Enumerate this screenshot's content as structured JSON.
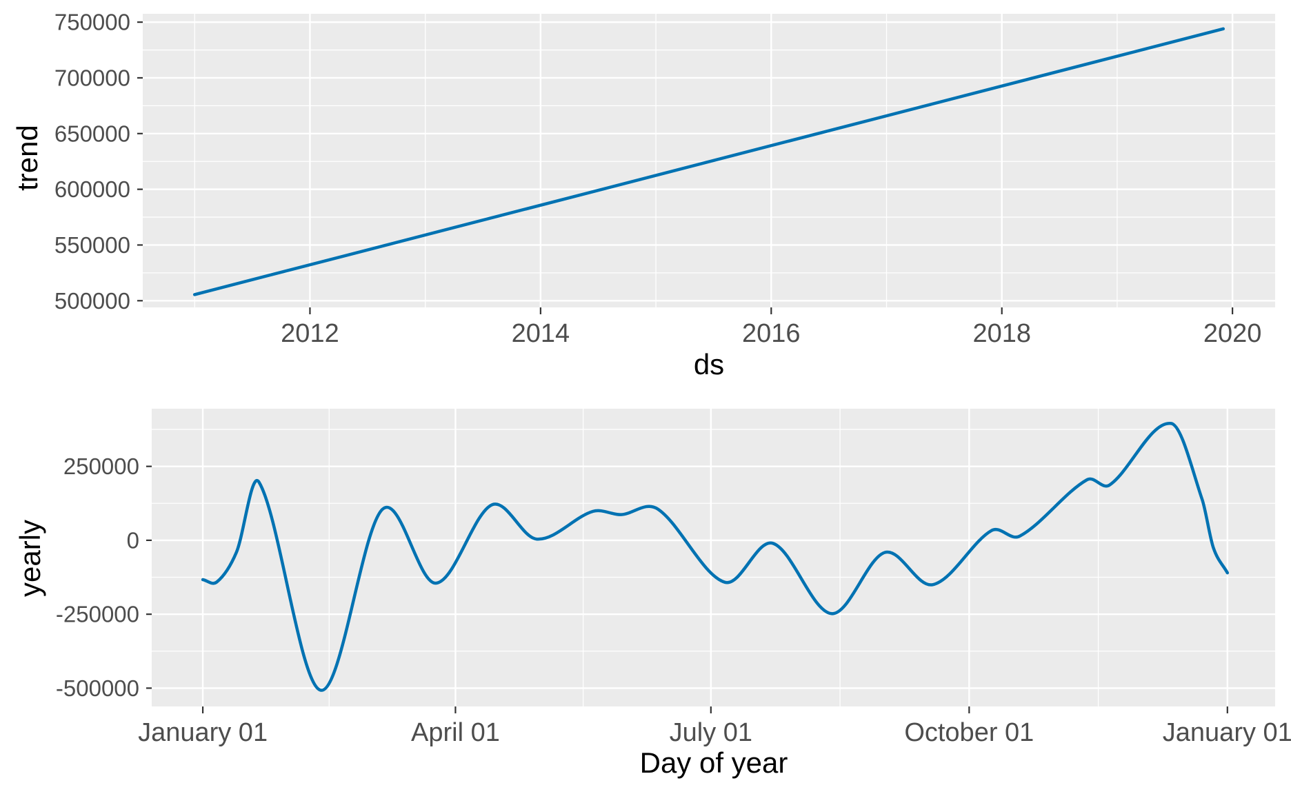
{
  "colors": {
    "line": "#0072B2",
    "panel_bg": "#EBEBEB",
    "grid": "#FFFFFF",
    "tick_text": "#4D4D4D",
    "tick_mark": "#333333",
    "axis_title": "#000000"
  },
  "chart_data": [
    {
      "type": "line",
      "title": "",
      "xlabel": "ds",
      "ylabel": "trend",
      "grid": true,
      "legend": "none",
      "xlim": [
        2010.55,
        2020.37
      ],
      "ylim": [
        494000,
        757500
      ],
      "x_ticks": {
        "major": [
          {
            "label": "2012",
            "value": 2012
          },
          {
            "label": "2014",
            "value": 2014
          },
          {
            "label": "2016",
            "value": 2016
          },
          {
            "label": "2018",
            "value": 2018
          },
          {
            "label": "2020",
            "value": 2020
          }
        ],
        "minor": [
          2011,
          2013,
          2015,
          2017,
          2019
        ]
      },
      "y_ticks": {
        "major": [
          {
            "label": "750000",
            "value": 750000
          },
          {
            "label": "700000",
            "value": 700000
          },
          {
            "label": "650000",
            "value": 650000
          },
          {
            "label": "600000",
            "value": 600000
          },
          {
            "label": "550000",
            "value": 550000
          },
          {
            "label": "500000",
            "value": 500000
          }
        ],
        "minor": [
          725000,
          675000,
          625000,
          575000,
          525000
        ]
      },
      "series": [
        {
          "name": "trend",
          "x": [
            2011.0,
            2019.92
          ],
          "y": [
            505500,
            744000
          ]
        }
      ]
    },
    {
      "type": "line",
      "title": "",
      "xlabel": "Day of year",
      "ylabel": "yearly",
      "grid": true,
      "legend": "none",
      "xlim": [
        -18.2,
        382
      ],
      "ylim": [
        -562000,
        445000
      ],
      "x_ticks": {
        "major": [
          {
            "label": "January 01",
            "value": 0
          },
          {
            "label": "April 01",
            "value": 90
          },
          {
            "label": "July 01",
            "value": 181
          },
          {
            "label": "October 01",
            "value": 273
          },
          {
            "label": "January 01",
            "value": 365
          }
        ],
        "minor": [
          45,
          135.5,
          227,
          319
        ]
      },
      "y_ticks": {
        "major": [
          {
            "label": "250000",
            "value": 250000
          },
          {
            "label": "0",
            "value": 0
          },
          {
            "label": "-250000",
            "value": -250000
          },
          {
            "label": "-500000",
            "value": -500000
          }
        ],
        "minor": [
          375000,
          125000,
          -125000,
          -375000
        ]
      },
      "series": [
        {
          "name": "yearly",
          "x": [
            0,
            5,
            12,
            20,
            42,
            64,
            83,
            103,
            119,
            139,
            149,
            162,
            186,
            203,
            224,
            243,
            260,
            281,
            291,
            315,
            323,
            345,
            356,
            360,
            365
          ],
          "y": [
            -133000,
            -141000,
            -40000,
            197000,
            -507000,
            105000,
            -145000,
            120000,
            4000,
            98000,
            87000,
            106000,
            -142000,
            -10000,
            -248000,
            -41000,
            -150000,
            33000,
            14000,
            205000,
            187000,
            395000,
            138000,
            -25000,
            -110000
          ]
        }
      ]
    }
  ]
}
